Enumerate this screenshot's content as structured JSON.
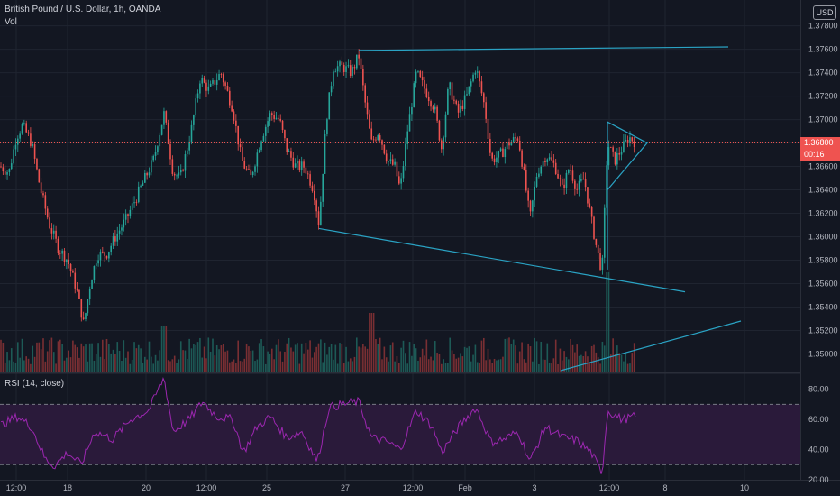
{
  "header": {
    "symbol_line": "British Pound / U.S. Dollar, 1h, OANDA",
    "volume_label": "Vol",
    "rsi_label": "RSI (14, close)",
    "currency_badge": "USD"
  },
  "price_tags": {
    "last_price": "1.36800",
    "countdown": "00:16"
  },
  "colors": {
    "background": "#131722",
    "up": "#26a69a",
    "down": "#ef5350",
    "drawing": "#2aa3c4",
    "rsi_line": "#9c27b0",
    "rsi_band": "#2a1a3a",
    "grid": "#1f2430",
    "last_price_line": "#ef5350"
  },
  "chart_data": [
    {
      "type": "candlestick",
      "title": "British Pound / U.S. Dollar, 1h, OANDA",
      "ylabel": "USD",
      "ylim": [
        1.3485,
        1.3802
      ],
      "y_ticks": [
        "1.37800",
        "1.37600",
        "1.37400",
        "1.37200",
        "1.37000",
        "1.36800",
        "1.36600",
        "1.36400",
        "1.36200",
        "1.36000",
        "1.35800",
        "1.35600",
        "1.35400",
        "1.35200",
        "1.35000"
      ],
      "x_tick_labels": [
        "12:00",
        "18",
        "20",
        "12:00",
        "25",
        "27",
        "12:00",
        "Feb",
        "3",
        "12:00",
        "8",
        "10"
      ],
      "last_price": 1.368,
      "close_path": [
        {
          "x": 0,
          "y": 1.366
        },
        {
          "x": 10,
          "y": 1.3655
        },
        {
          "x": 18,
          "y": 1.3685
        },
        {
          "x": 25,
          "y": 1.3695
        },
        {
          "x": 35,
          "y": 1.368
        },
        {
          "x": 45,
          "y": 1.364
        },
        {
          "x": 55,
          "y": 1.361
        },
        {
          "x": 65,
          "y": 1.359
        },
        {
          "x": 75,
          "y": 1.358
        },
        {
          "x": 85,
          "y": 1.3555
        },
        {
          "x": 93,
          "y": 1.3525
        },
        {
          "x": 100,
          "y": 1.356
        },
        {
          "x": 108,
          "y": 1.3585
        },
        {
          "x": 118,
          "y": 1.3585
        },
        {
          "x": 128,
          "y": 1.36
        },
        {
          "x": 140,
          "y": 1.3615
        },
        {
          "x": 155,
          "y": 1.364
        },
        {
          "x": 170,
          "y": 1.3665
        },
        {
          "x": 182,
          "y": 1.3705
        },
        {
          "x": 192,
          "y": 1.3655
        },
        {
          "x": 200,
          "y": 1.365
        },
        {
          "x": 212,
          "y": 1.369
        },
        {
          "x": 222,
          "y": 1.3735
        },
        {
          "x": 232,
          "y": 1.3725
        },
        {
          "x": 245,
          "y": 1.374
        },
        {
          "x": 258,
          "y": 1.371
        },
        {
          "x": 268,
          "y": 1.3665
        },
        {
          "x": 278,
          "y": 1.365
        },
        {
          "x": 290,
          "y": 1.3685
        },
        {
          "x": 300,
          "y": 1.3705
        },
        {
          "x": 310,
          "y": 1.37
        },
        {
          "x": 318,
          "y": 1.3675
        },
        {
          "x": 328,
          "y": 1.366
        },
        {
          "x": 338,
          "y": 1.366
        },
        {
          "x": 348,
          "y": 1.364
        },
        {
          "x": 354,
          "y": 1.361
        },
        {
          "x": 362,
          "y": 1.37
        },
        {
          "x": 370,
          "y": 1.3745
        },
        {
          "x": 380,
          "y": 1.3745
        },
        {
          "x": 390,
          "y": 1.374
        },
        {
          "x": 398,
          "y": 1.3755
        },
        {
          "x": 405,
          "y": 1.3715
        },
        {
          "x": 412,
          "y": 1.368
        },
        {
          "x": 420,
          "y": 1.369
        },
        {
          "x": 430,
          "y": 1.3665
        },
        {
          "x": 438,
          "y": 1.366
        },
        {
          "x": 444,
          "y": 1.364
        },
        {
          "x": 452,
          "y": 1.369
        },
        {
          "x": 462,
          "y": 1.374
        },
        {
          "x": 472,
          "y": 1.3725
        },
        {
          "x": 482,
          "y": 1.371
        },
        {
          "x": 490,
          "y": 1.3675
        },
        {
          "x": 498,
          "y": 1.373
        },
        {
          "x": 508,
          "y": 1.3705
        },
        {
          "x": 518,
          "y": 1.372
        },
        {
          "x": 528,
          "y": 1.3745
        },
        {
          "x": 538,
          "y": 1.371
        },
        {
          "x": 545,
          "y": 1.3665
        },
        {
          "x": 555,
          "y": 1.367
        },
        {
          "x": 565,
          "y": 1.368
        },
        {
          "x": 575,
          "y": 1.3685
        },
        {
          "x": 582,
          "y": 1.365
        },
        {
          "x": 588,
          "y": 1.3615
        },
        {
          "x": 596,
          "y": 1.3655
        },
        {
          "x": 606,
          "y": 1.367
        },
        {
          "x": 616,
          "y": 1.366
        },
        {
          "x": 624,
          "y": 1.364
        },
        {
          "x": 632,
          "y": 1.366
        },
        {
          "x": 640,
          "y": 1.364
        },
        {
          "x": 648,
          "y": 1.365
        },
        {
          "x": 656,
          "y": 1.3615
        },
        {
          "x": 662,
          "y": 1.359
        },
        {
          "x": 668,
          "y": 1.357
        },
        {
          "x": 674,
          "y": 1.368
        },
        {
          "x": 682,
          "y": 1.3665
        },
        {
          "x": 690,
          "y": 1.3675
        },
        {
          "x": 698,
          "y": 1.3685
        },
        {
          "x": 706,
          "y": 1.368
        }
      ],
      "drawings": [
        {
          "type": "trendline",
          "from": {
            "x": 398,
            "y": 1.3759
          },
          "to": {
            "x": 808,
            "y": 1.3762
          }
        },
        {
          "type": "trendline",
          "from": {
            "x": 354,
            "y": 1.3607
          },
          "to": {
            "x": 760,
            "y": 1.3553
          }
        },
        {
          "type": "triangle",
          "points": [
            {
              "x": 674,
              "y": 1.3698
            },
            {
              "x": 718,
              "y": 1.368
            },
            {
              "x": 674,
              "y": 1.364
            }
          ]
        },
        {
          "type": "line",
          "from": {
            "x": 674,
            "y": 1.364
          },
          "to": {
            "x": 674,
            "y": 1.3572
          }
        }
      ]
    },
    {
      "type": "bar",
      "title": "Vol",
      "series": [
        {
          "name": "Vol",
          "values": []
        }
      ]
    },
    {
      "type": "line",
      "title": "RSI (14, close)",
      "ylim": [
        20,
        90
      ],
      "y_ticks": [
        "80.00",
        "60.00",
        "40.00",
        "20.00"
      ],
      "bands": [
        70,
        30
      ],
      "values": [
        {
          "x": 0,
          "y": 56
        },
        {
          "x": 20,
          "y": 62
        },
        {
          "x": 35,
          "y": 55
        },
        {
          "x": 50,
          "y": 34
        },
        {
          "x": 60,
          "y": 29
        },
        {
          "x": 75,
          "y": 38
        },
        {
          "x": 90,
          "y": 30
        },
        {
          "x": 105,
          "y": 52
        },
        {
          "x": 125,
          "y": 47
        },
        {
          "x": 145,
          "y": 60
        },
        {
          "x": 165,
          "y": 66
        },
        {
          "x": 182,
          "y": 88
        },
        {
          "x": 192,
          "y": 52
        },
        {
          "x": 210,
          "y": 60
        },
        {
          "x": 225,
          "y": 72
        },
        {
          "x": 240,
          "y": 62
        },
        {
          "x": 258,
          "y": 60
        },
        {
          "x": 270,
          "y": 38
        },
        {
          "x": 285,
          "y": 55
        },
        {
          "x": 300,
          "y": 62
        },
        {
          "x": 318,
          "y": 48
        },
        {
          "x": 335,
          "y": 52
        },
        {
          "x": 352,
          "y": 32
        },
        {
          "x": 365,
          "y": 68
        },
        {
          "x": 380,
          "y": 70
        },
        {
          "x": 398,
          "y": 72
        },
        {
          "x": 412,
          "y": 48
        },
        {
          "x": 430,
          "y": 45
        },
        {
          "x": 444,
          "y": 40
        },
        {
          "x": 462,
          "y": 66
        },
        {
          "x": 480,
          "y": 55
        },
        {
          "x": 490,
          "y": 38
        },
        {
          "x": 510,
          "y": 56
        },
        {
          "x": 528,
          "y": 68
        },
        {
          "x": 545,
          "y": 45
        },
        {
          "x": 560,
          "y": 47
        },
        {
          "x": 575,
          "y": 52
        },
        {
          "x": 588,
          "y": 32
        },
        {
          "x": 605,
          "y": 55
        },
        {
          "x": 625,
          "y": 48
        },
        {
          "x": 640,
          "y": 46
        },
        {
          "x": 656,
          "y": 38
        },
        {
          "x": 668,
          "y": 24
        },
        {
          "x": 674,
          "y": 66
        },
        {
          "x": 690,
          "y": 60
        },
        {
          "x": 706,
          "y": 62
        }
      ]
    }
  ]
}
